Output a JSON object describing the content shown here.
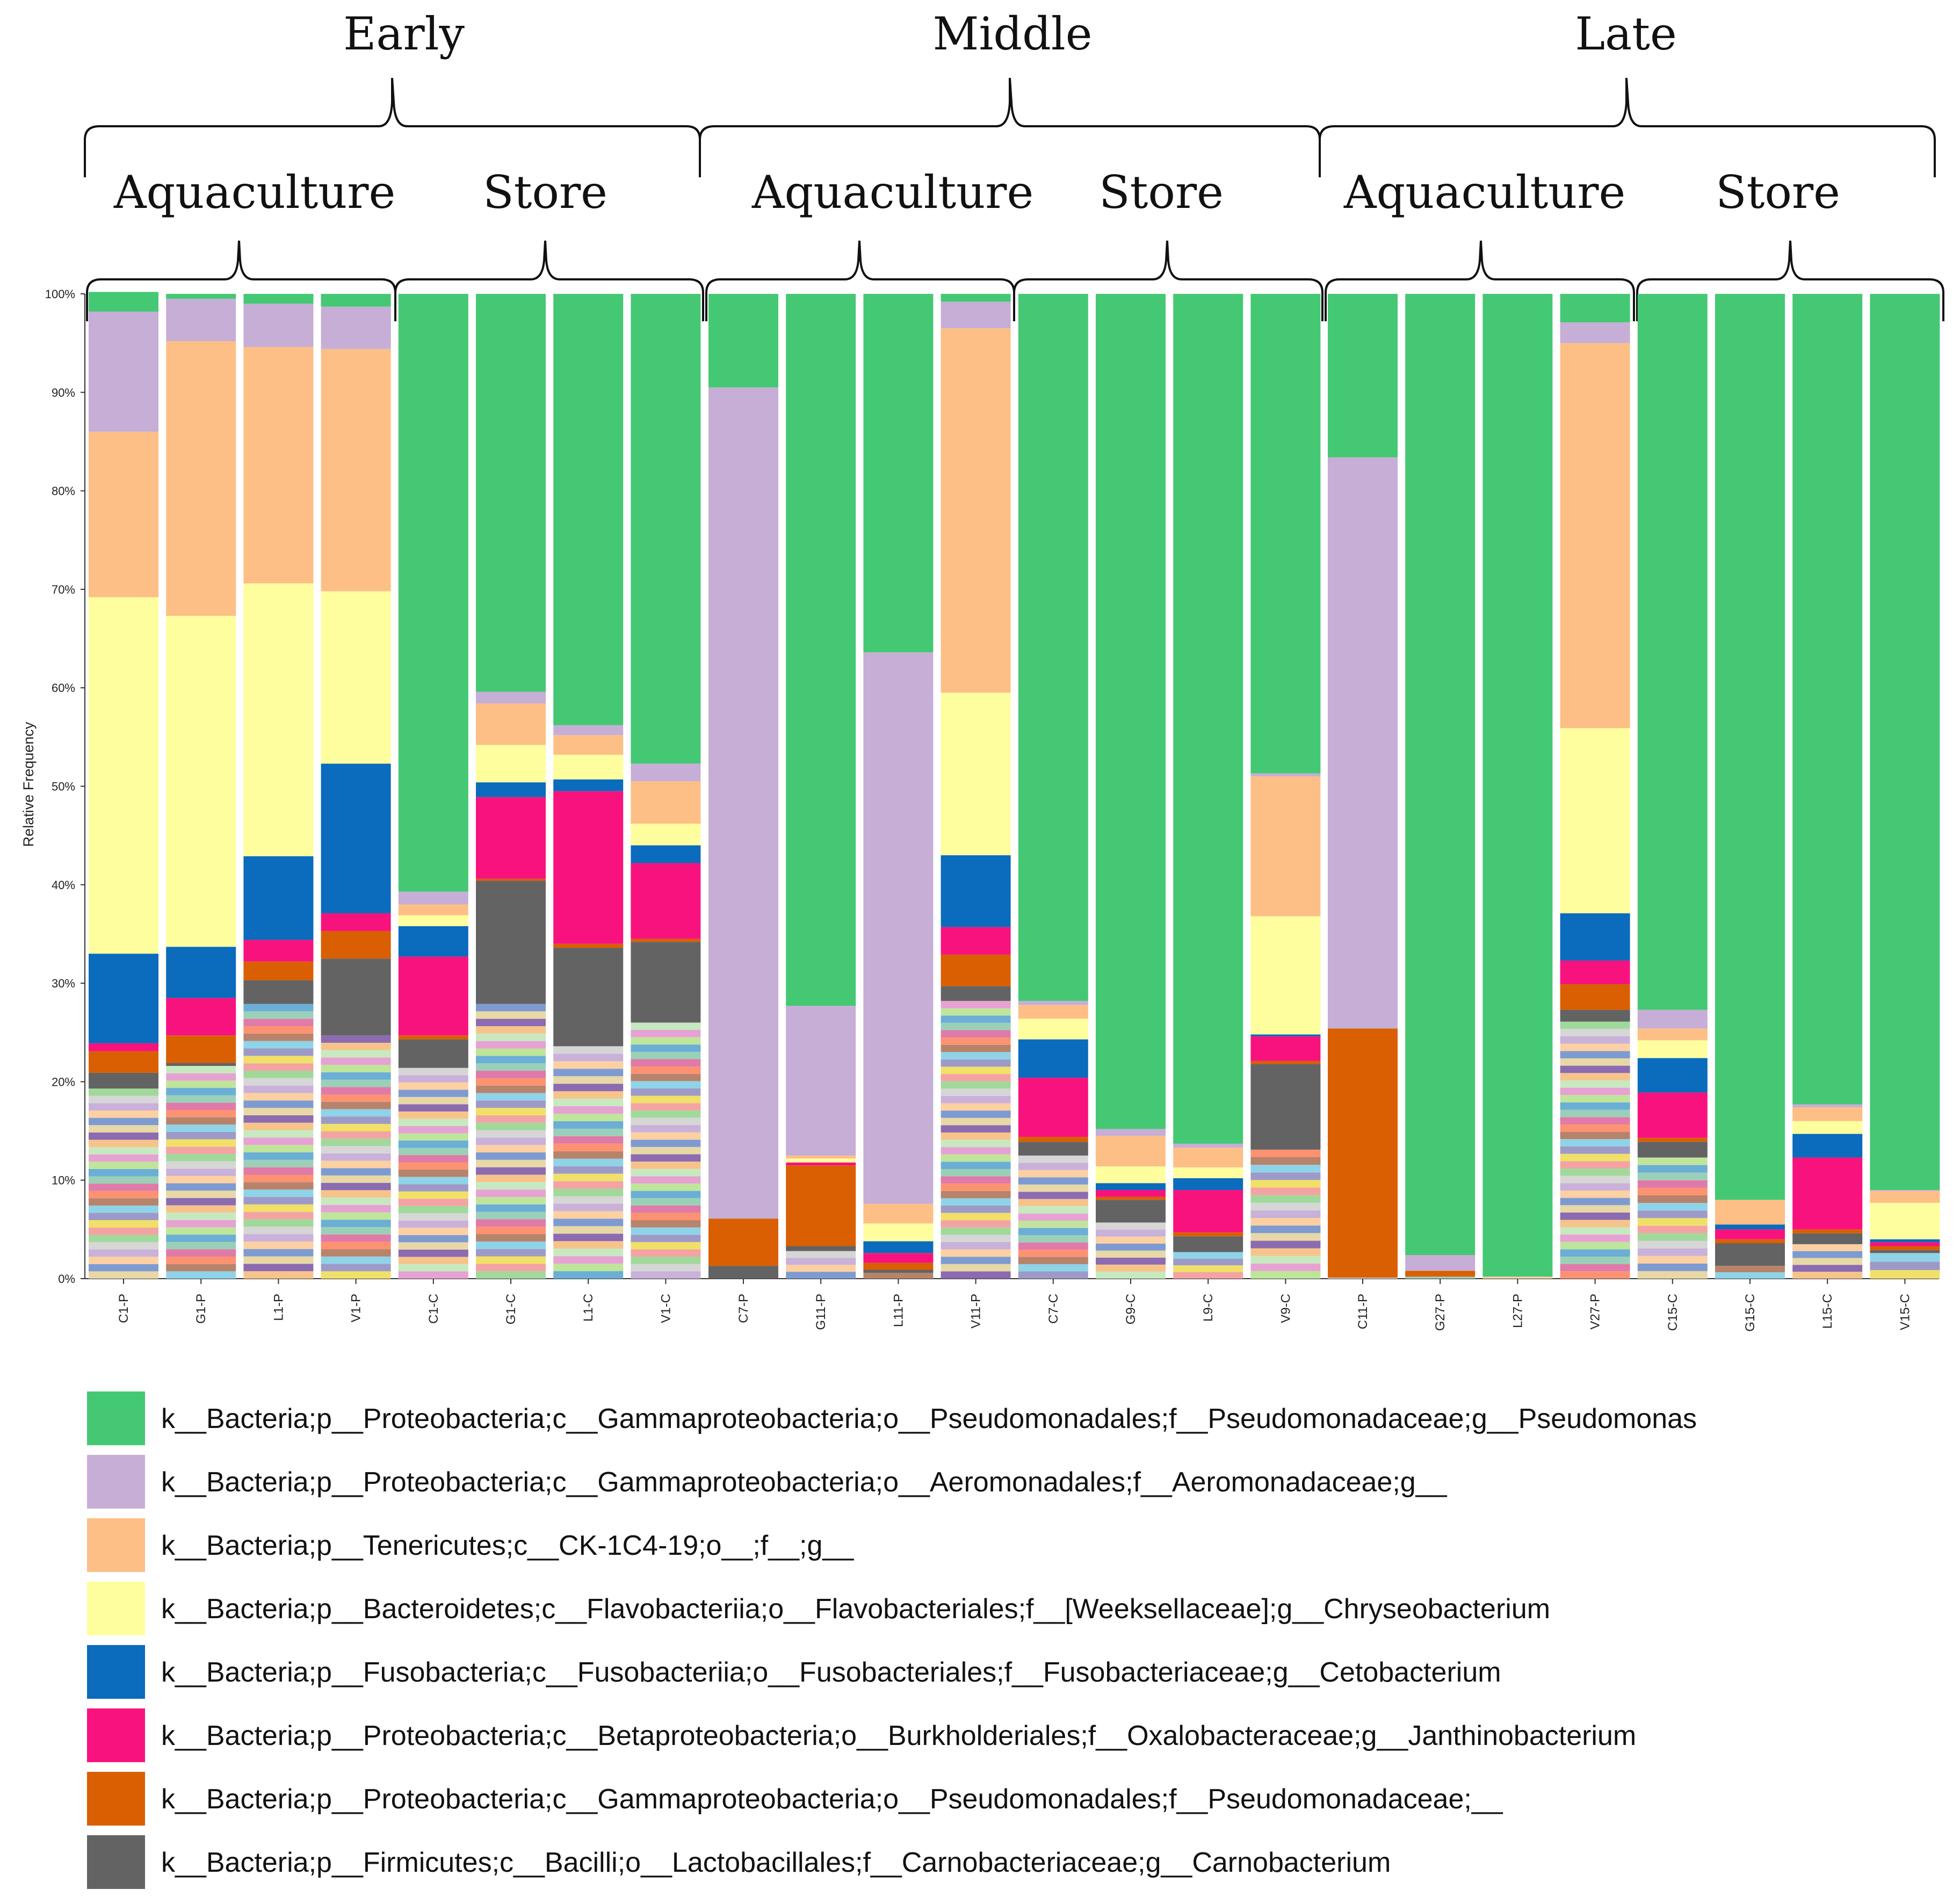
{
  "chart_data": {
    "type": "bar",
    "stacked": true,
    "ylabel": "Relative Frequency",
    "ylim": [
      0,
      100
    ],
    "yticks": [
      "0%",
      "10%",
      "20%",
      "30%",
      "40%",
      "50%",
      "60%",
      "70%",
      "80%",
      "90%",
      "100%"
    ],
    "grid": false,
    "legend_position": "bottom",
    "period_labels": [
      "Early",
      "Middle",
      "Late"
    ],
    "site_labels": [
      "Aquaculture",
      "Store",
      "Aquaculture",
      "Store",
      "Aquaculture",
      "Store"
    ],
    "categories": [
      "C1-P",
      "G1-P",
      "L1-P",
      "V1-P",
      "C1-C",
      "G1-C",
      "L1-C",
      "V1-C",
      "C7-P",
      "G11-P",
      "L11-P",
      "V11-P",
      "C7-C",
      "G9-C",
      "L9-C",
      "V9-C",
      "C11-P",
      "G27-P",
      "L27-P",
      "V27-P",
      "C15-C",
      "G15-C",
      "L15-C",
      "V15-C"
    ],
    "series": [
      {
        "name": "k__Bacteria;p__Proteobacteria;c__Gammaproteobacteria;o__Pseudomonadales;f__Pseudomonadaceae;g__Pseudomonas",
        "color": "#45c873",
        "values": [
          2,
          0.5,
          1,
          1.3,
          60.7,
          40.4,
          43.8,
          47.7,
          9.5,
          72.3,
          36.4,
          0.8,
          71.8,
          84.8,
          86.3,
          48.7,
          16.6,
          97.6,
          99.8,
          2.9,
          72.7,
          92,
          82.3,
          91
        ]
      },
      {
        "name": "k__Bacteria;p__Proteobacteria;c__Gammaproteobacteria;o__Aeromonadales;f__Aeromonadaceae;g__",
        "color": "#c6aed6",
        "values": [
          12.2,
          4.3,
          4.4,
          4.3,
          1.3,
          1.2,
          1,
          1.8,
          84.4,
          15.2,
          56,
          2.7,
          0.4,
          0.7,
          0.4,
          0.3,
          58,
          1.6,
          0,
          2.1,
          1.9,
          0,
          0.3,
          0.1
        ]
      },
      {
        "name": "k__Bacteria;p__Tenericutes;c__CK-1C4-19;o__;f__;g__",
        "color": "#fdbf86",
        "values": [
          16.8,
          27.9,
          24,
          24.6,
          1.1,
          4.2,
          2,
          4.3,
          0,
          0.3,
          2,
          37,
          1.4,
          3.1,
          2,
          14.2,
          0,
          0,
          0,
          39.1,
          1.2,
          2.5,
          1.4,
          1.2
        ]
      },
      {
        "name": "k__Bacteria;p__Bacteroidetes;c__Flavobacteriia;o__Flavobacteriales;f__[Weeksellaceae];g__Chryseobacterium",
        "color": "#fffe9f",
        "values": [
          36.2,
          33.6,
          27.7,
          17.5,
          1.1,
          3.8,
          2.5,
          2.2,
          0,
          0.4,
          1.8,
          16.5,
          2.1,
          1.7,
          1.1,
          12,
          0,
          0,
          0,
          18.8,
          1.8,
          0,
          1.3,
          3.7
        ]
      },
      {
        "name": "k__Bacteria;p__Fusobacteria;c__Fusobacteriia;o__Fusobacteriales;f__Fusobacteriaceae;g__Cetobacterium",
        "color": "#0b6bbd",
        "values": [
          9.1,
          5.2,
          8.5,
          15.2,
          3.1,
          1.5,
          1.2,
          1.8,
          0,
          0,
          1.2,
          7.3,
          3.9,
          0.7,
          1.2,
          0.2,
          0,
          0,
          0,
          4.8,
          3.5,
          0.5,
          2.4,
          0.3
        ]
      },
      {
        "name": "k__Bacteria;p__Proteobacteria;c__Betaproteobacteria;o__Burkholderiales;f__Oxalobacteraceae;g__Janthinobacterium",
        "color": "#f8127e",
        "values": [
          0.8,
          3.8,
          2.2,
          1.8,
          8,
          8.3,
          15.5,
          7.7,
          0,
          0.3,
          1,
          2.8,
          6,
          0.7,
          4.3,
          2.5,
          0,
          0,
          0,
          2.4,
          4.6,
          1,
          7.3,
          0.4
        ]
      },
      {
        "name": "k__Bacteria;p__Proteobacteria;c__Gammaproteobacteria;o__Pseudomonadales;f__Pseudomonadaceae;__",
        "color": "#d95f02",
        "values": [
          2.2,
          2.8,
          1.9,
          2.8,
          0.4,
          0.2,
          0.4,
          0.3,
          4.8,
          8.2,
          0.7,
          3.2,
          0.5,
          0.3,
          0.4,
          0.3,
          25.3,
          0.6,
          0,
          2.6,
          0.4,
          0.4,
          0.4,
          0.4
        ]
      },
      {
        "name": "k__Bacteria;p__Firmicutes;c__Bacilli;o__Lactobacillales;f__Carnobacteriaceae;g__Carnobacterium",
        "color": "#636363",
        "values": [
          1.6,
          0.3,
          2.4,
          7.8,
          2.9,
          12.5,
          10,
          8.2,
          1.3,
          0.5,
          0.3,
          1.5,
          1.4,
          2.3,
          1.6,
          8.7,
          0,
          0,
          0,
          1.2,
          1.6,
          2.3,
          1.1,
          0.3
        ]
      }
    ],
    "other_fraction": [
      19.3,
      21.6,
      27.9,
      24.7,
      21.4,
      27.9,
      23.6,
      26,
      0,
      2.8,
      0.6,
      28.2,
      12.5,
      5.7,
      2.7,
      13.1,
      0.1,
      0.2,
      0.2,
      26.1,
      12.3,
      1.3,
      3.5,
      2.6
    ]
  }
}
